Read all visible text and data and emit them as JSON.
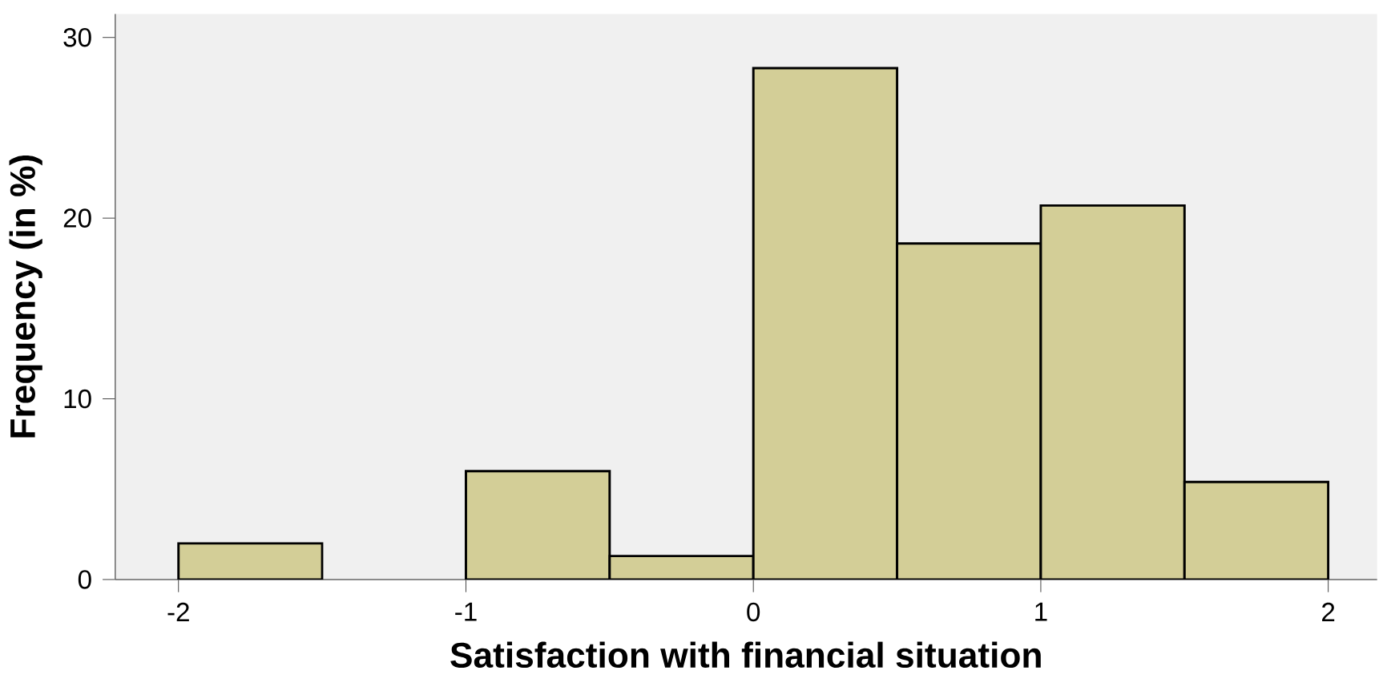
{
  "chart_data": {
    "type": "histogram",
    "xlabel": "Satisfaction with financial situation",
    "ylabel": "Frequency (in %)",
    "bins": [
      -2,
      -1.5,
      -1,
      -0.5,
      0,
      0.5,
      1,
      1.5,
      2
    ],
    "values": [
      2.0,
      0,
      6.0,
      1.3,
      28.3,
      18.6,
      20.7,
      5.4
    ],
    "color": "#d3ce97",
    "xlim": [
      -2.22,
      2.17
    ],
    "ylim": [
      0,
      31.3
    ],
    "xticks": [
      -2,
      -1,
      0,
      1,
      2
    ],
    "yticks": [
      0,
      10,
      20,
      30
    ],
    "grid": false
  }
}
